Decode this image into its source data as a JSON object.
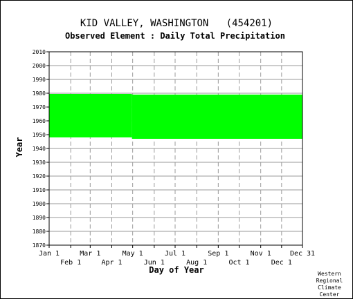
{
  "chart_data": {
    "type": "area",
    "title": "KID VALLEY, WASHINGTON   (454201)",
    "subtitle": "Observed Element : Daily Total Precipitation",
    "xlabel": "Day of Year",
    "ylabel": "Year",
    "ylim": [
      1870,
      2010
    ],
    "xlim": [
      "Jan 1",
      "Dec 31"
    ],
    "y_ticks": [
      1870,
      1880,
      1890,
      1900,
      1910,
      1920,
      1930,
      1940,
      1950,
      1960,
      1970,
      1980,
      1990,
      2000,
      2010
    ],
    "x_ticks_top_row": [
      "Jan 1",
      "Mar 1",
      "May 1",
      "Jul 1",
      "Sep 1",
      "Nov 1",
      "Dec 31"
    ],
    "x_ticks_bottom_row": [
      "Feb 1",
      "Apr 1",
      "Jun 1",
      "Aug 1",
      "Oct 1",
      "Dec 1"
    ],
    "grid": true,
    "data_color": "#00ff00",
    "series": [
      {
        "segments": [
          {
            "start_day": 1,
            "end_day": 120,
            "start_year": 1948,
            "end_year": 1979.5
          },
          {
            "start_day": 120,
            "end_day": 365,
            "start_year": 1947,
            "end_year": 1979
          }
        ]
      }
    ]
  },
  "credit": [
    "Western",
    "Regional",
    "Climate",
    "Center"
  ]
}
